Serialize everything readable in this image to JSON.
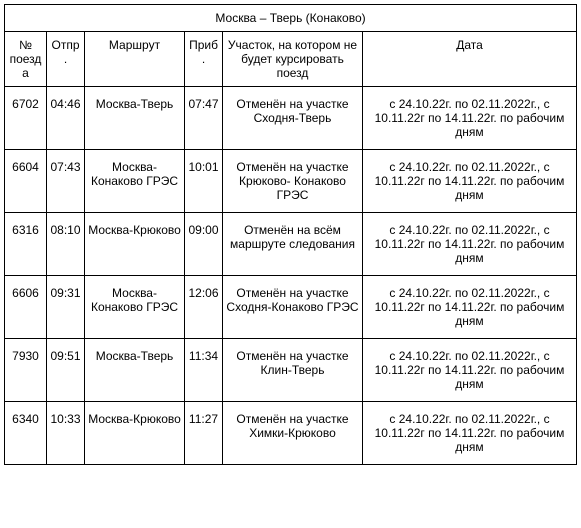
{
  "title": "Москва – Тверь (Конаково)",
  "columns": [
    "№ поезда",
    "Отпр.",
    "Маршрут",
    "Приб.",
    "Участок, на котором не будет курсировать поезд",
    "Дата"
  ],
  "rows": [
    {
      "num": "6702",
      "dep": "04:46",
      "route": "Москва-Тверь",
      "arr": "07:47",
      "segment": "Отменён на участке Сходня-Тверь",
      "date": "с 24.10.22г. по 02.11.2022г., с 10.11.22г по 14.11.22г. по рабочим дням"
    },
    {
      "num": "6604",
      "dep": "07:43",
      "route": "Москва-Конаково ГРЭС",
      "arr": "10:01",
      "segment": "Отменён на участке Крюково- Конаково ГРЭС",
      "date": "с 24.10.22г. по 02.11.2022г., с 10.11.22г по 14.11.22г. по рабочим дням"
    },
    {
      "num": "6316",
      "dep": "08:10",
      "route": "Москва-Крюково",
      "arr": "09:00",
      "segment": "Отменён на всём маршруте следования",
      "date": "с 24.10.22г. по 02.11.2022г., с 10.11.22г по 14.11.22г. по рабочим дням"
    },
    {
      "num": "6606",
      "dep": "09:31",
      "route": "Москва-Конаково ГРЭС",
      "arr": "12:06",
      "segment": "Отменён на участке Сходня-Конаково ГРЭС",
      "date": "с 24.10.22г. по 02.11.2022г., с 10.11.22г по 14.11.22г. по рабочим дням"
    },
    {
      "num": "7930",
      "dep": "09:51",
      "route": "Москва-Тверь",
      "arr": "11:34",
      "segment": "Отменён на участке Клин-Тверь",
      "date": "с 24.10.22г. по 02.11.2022г., с 10.11.22г по 14.11.22г. по рабочим дням"
    },
    {
      "num": "6340",
      "dep": "10:33",
      "route": "Москва-Крюково",
      "arr": "11:27",
      "segment": "Отменён на участке Химки-Крюково",
      "date": "с 24.10.22г. по 02.11.2022г., с 10.11.22г по 14.11.22г. по рабочим дням"
    }
  ]
}
